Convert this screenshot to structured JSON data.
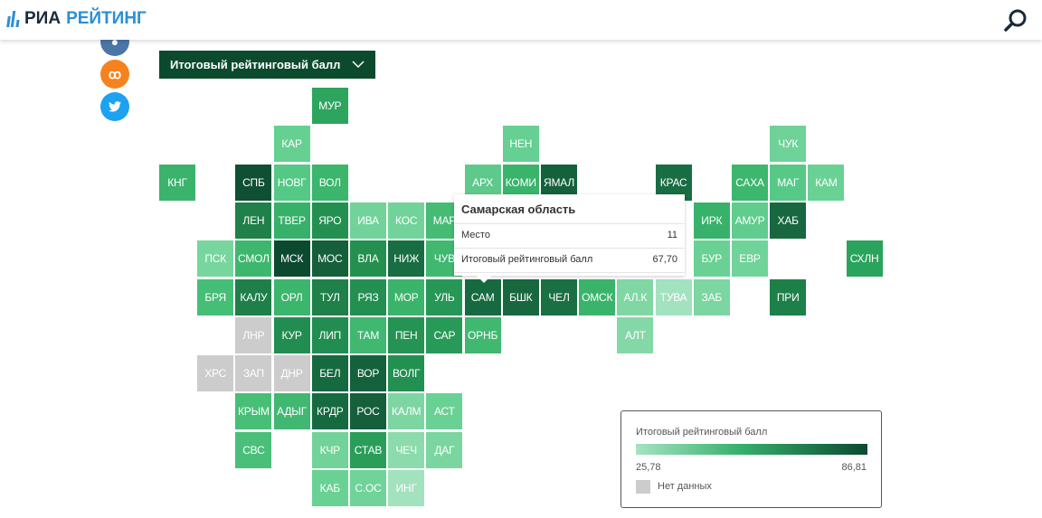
{
  "header": {
    "logo_part1": "РИА",
    "logo_part2": "РЕЙТИНГ"
  },
  "dropdown": {
    "label": "Итоговый рейтинговый балл"
  },
  "tooltip": {
    "title": "Самарская область",
    "rows": [
      {
        "label": "Место",
        "value": "11"
      },
      {
        "label": "Итоговый рейтинговый балл",
        "value": "67,70"
      }
    ]
  },
  "legend": {
    "title": "Итоговый рейтинговый балл",
    "min": "25,78",
    "max": "86,81",
    "no_data": "Нет данных",
    "color_min": "#a6e3c3",
    "color_max": "#0b4a30",
    "no_data_color": "#cccccc"
  },
  "tiles": [
    {
      "code": "МУР",
      "color": "#2ea55f"
    },
    {
      "code": "КАР",
      "color": "#66cf92"
    },
    {
      "code": "НЕН",
      "color": "#66cf92"
    },
    {
      "code": "ЧУК",
      "color": "#6fd298"
    },
    {
      "code": "КНГ",
      "color": "#3bb36c"
    },
    {
      "code": "СПБ",
      "color": "#0f4f33"
    },
    {
      "code": "НОВГ",
      "color": "#55c885"
    },
    {
      "code": "ВОЛ",
      "color": "#3cb56d"
    },
    {
      "code": "АРХ",
      "color": "#5ec98b"
    },
    {
      "code": "КОМИ",
      "color": "#3ab46b"
    },
    {
      "code": "ЯМАЛ",
      "color": "#14613c"
    },
    {
      "code": "КРАС",
      "color": "#196d42"
    },
    {
      "code": "САХА",
      "color": "#3db66e"
    },
    {
      "code": "МАГ",
      "color": "#57c987"
    },
    {
      "code": "КАМ",
      "color": "#6ad195"
    },
    {
      "code": "ЛЕН",
      "color": "#1f8049"
    },
    {
      "code": "ТВЕР",
      "color": "#37b06a"
    },
    {
      "code": "ЯРО",
      "color": "#239052"
    },
    {
      "code": "ИВА",
      "color": "#72d39a"
    },
    {
      "code": "КОС",
      "color": "#72d39a"
    },
    {
      "code": "МАР",
      "color": "#45bb74"
    },
    {
      "code": "ИРК",
      "color": "#38b26a"
    },
    {
      "code": "АМУР",
      "color": "#60cc8e"
    },
    {
      "code": "ХАБ",
      "color": "#176840"
    },
    {
      "code": "ПСК",
      "color": "#77d59e"
    },
    {
      "code": "СМОЛ",
      "color": "#3fb66e"
    },
    {
      "code": "МСК",
      "color": "#0c4a30"
    },
    {
      "code": "МОС",
      "color": "#155f3b"
    },
    {
      "code": "ВЛА",
      "color": "#23904f"
    },
    {
      "code": "НИЖ",
      "color": "#196d42"
    },
    {
      "code": "ЧУВ",
      "color": "#40b870"
    },
    {
      "code": "БУР",
      "color": "#6ad195"
    },
    {
      "code": "ЕВР",
      "color": "#70d399"
    },
    {
      "code": "СХЛН",
      "color": "#2aa35d"
    },
    {
      "code": "БРЯ",
      "color": "#45be76"
    },
    {
      "code": "КАЛУ",
      "color": "#1e7f48"
    },
    {
      "code": "ОРЛ",
      "color": "#3cb56d"
    },
    {
      "code": "ТУЛ",
      "color": "#1f8049"
    },
    {
      "code": "РЯЗ",
      "color": "#239052"
    },
    {
      "code": "МОР",
      "color": "#3ab46b"
    },
    {
      "code": "УЛЬ",
      "color": "#269757"
    },
    {
      "code": "САМ",
      "color": "#176a40"
    },
    {
      "code": "БШК",
      "color": "#18673f"
    },
    {
      "code": "ЧЕЛ",
      "color": "#1a7043"
    },
    {
      "code": "ОМСК",
      "color": "#3ab46b"
    },
    {
      "code": "АЛ.К",
      "color": "#80d7a4"
    },
    {
      "code": "ТУВА",
      "color": "#a3e2bf"
    },
    {
      "code": "ЗАБ",
      "color": "#7bd6a1"
    },
    {
      "code": "ПРИ",
      "color": "#1e8049"
    },
    {
      "code": "ЛНР",
      "color": "#cccccc"
    },
    {
      "code": "КУР",
      "color": "#228d50"
    },
    {
      "code": "ЛИП",
      "color": "#228d50"
    },
    {
      "code": "ТАМ",
      "color": "#40b870"
    },
    {
      "code": "ПЕН",
      "color": "#249354"
    },
    {
      "code": "САР",
      "color": "#289a58"
    },
    {
      "code": "ОРНБ",
      "color": "#40b870"
    },
    {
      "code": "АЛТ",
      "color": "#84d8a7"
    },
    {
      "code": "ХРС",
      "color": "#cccccc"
    },
    {
      "code": "ЗАП",
      "color": "#cccccc"
    },
    {
      "code": "ДНР",
      "color": "#cccccc"
    },
    {
      "code": "БЕЛ",
      "color": "#166a40"
    },
    {
      "code": "ВОР",
      "color": "#14613c"
    },
    {
      "code": "ВОЛГ",
      "color": "#229051"
    },
    {
      "code": "КРЫМ",
      "color": "#48bf77"
    },
    {
      "code": "АДЫГ",
      "color": "#41b871"
    },
    {
      "code": "КРДР",
      "color": "#166a40"
    },
    {
      "code": "РОС",
      "color": "#165f3b"
    },
    {
      "code": "КАЛМ",
      "color": "#7dd6a2"
    },
    {
      "code": "АСТ",
      "color": "#6ad195"
    },
    {
      "code": "СВС",
      "color": "#4abf79"
    },
    {
      "code": "КЧР",
      "color": "#72d39a"
    },
    {
      "code": "СТАВ",
      "color": "#2a9e59"
    },
    {
      "code": "ЧЕЧ",
      "color": "#8cdbad"
    },
    {
      "code": "ДАГ",
      "color": "#7ad5a0"
    },
    {
      "code": "КАБ",
      "color": "#6ad195"
    },
    {
      "code": "С.ОС",
      "color": "#70d399"
    },
    {
      "code": "ИНГ",
      "color": "#a3e2bf"
    }
  ]
}
